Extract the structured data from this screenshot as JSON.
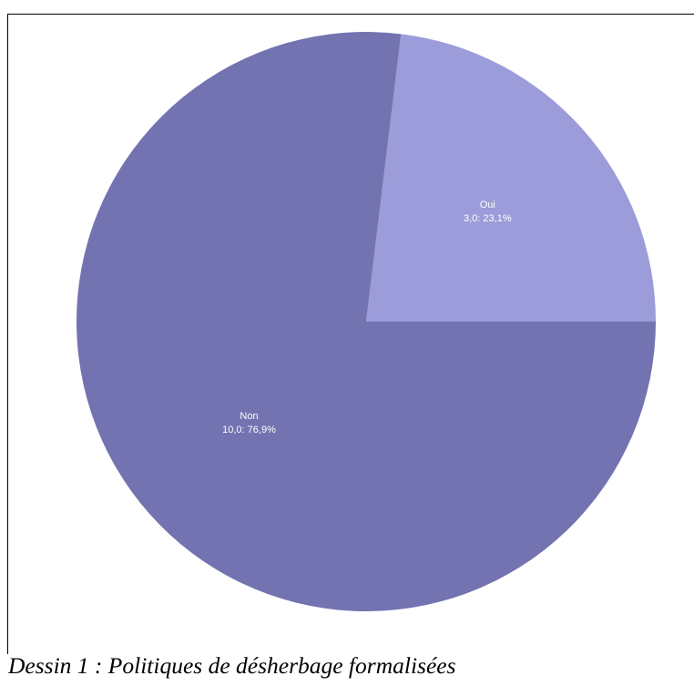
{
  "chart_data": {
    "type": "pie",
    "title": "",
    "slices": [
      {
        "name": "Oui",
        "value": 3.0,
        "percent": 23.1,
        "value_label": "3,0:  23,1%",
        "color": "#9c9cda"
      },
      {
        "name": "Non",
        "value": 10.0,
        "percent": 76.9,
        "value_label": "10,0:  76,9%",
        "color": "#7373b1"
      }
    ],
    "start": "3 o'clock",
    "direction": "counterclockwise",
    "legend": "none"
  },
  "caption": "Dessin 1 : Politiques de désherbage formalisées"
}
